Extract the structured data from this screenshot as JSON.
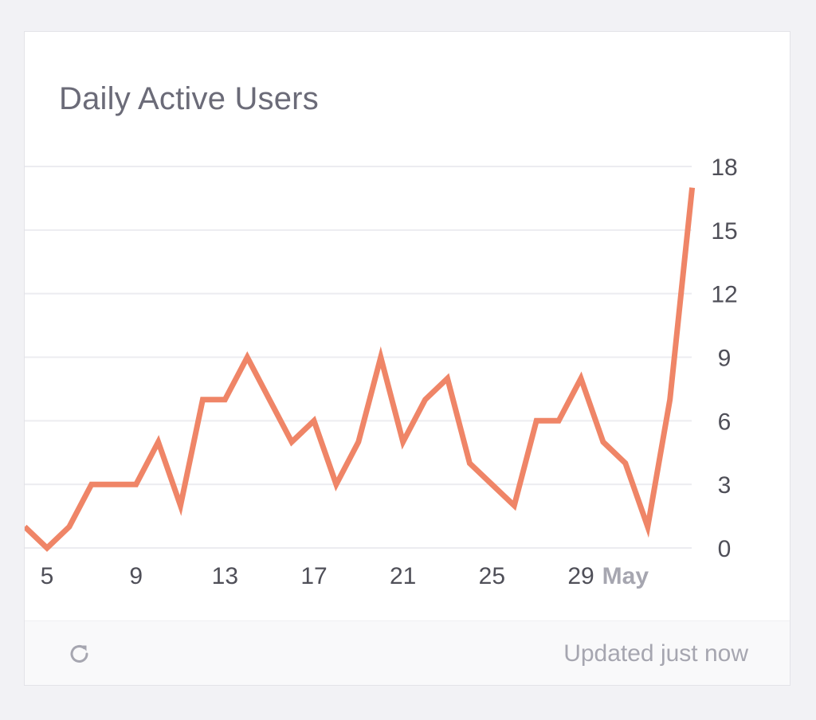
{
  "widget": {
    "title": "Daily Active Users",
    "footer_status": "Updated just now",
    "refresh_icon": "refresh-icon"
  },
  "colors": {
    "line": "#ef8567",
    "grid": "#ececf0",
    "tick_text": "#4f4f58",
    "month_text": "#a6a6b0"
  },
  "chart_data": {
    "type": "line",
    "title": "Daily Active Users",
    "xlabel": "",
    "ylabel": "",
    "ylim": [
      0,
      18
    ],
    "y_ticks": [
      0,
      3,
      6,
      9,
      12,
      15,
      18
    ],
    "y_axis_side": "right",
    "grid": true,
    "x_tick_labels": [
      {
        "day": 5,
        "label": "5",
        "bold": false
      },
      {
        "day": 9,
        "label": "9",
        "bold": false
      },
      {
        "day": 13,
        "label": "13",
        "bold": false
      },
      {
        "day": 17,
        "label": "17",
        "bold": false
      },
      {
        "day": 21,
        "label": "21",
        "bold": false
      },
      {
        "day": 25,
        "label": "25",
        "bold": false
      },
      {
        "day": 29,
        "label": "29",
        "bold": false
      },
      {
        "day": 31,
        "label": "May",
        "bold": true
      }
    ],
    "series": [
      {
        "x": [
          4,
          5,
          6,
          7,
          8,
          9,
          10,
          11,
          12,
          13,
          14,
          15,
          16,
          17,
          18,
          19,
          20,
          21,
          22,
          23,
          24,
          25,
          26,
          27,
          28,
          29,
          30,
          31,
          32,
          33
        ],
        "values": [
          1,
          0,
          1,
          3,
          3,
          3,
          5,
          2,
          7,
          7,
          9,
          7,
          5,
          6,
          3,
          5,
          9,
          5,
          7,
          8,
          4,
          3,
          2,
          6,
          6,
          8,
          5,
          4,
          1,
          7
        ]
      }
    ],
    "last_point": {
      "x": 34,
      "value": 17
    }
  }
}
